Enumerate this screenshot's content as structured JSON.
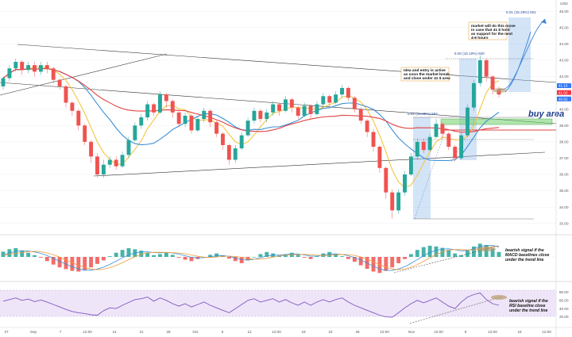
{
  "chart_data": {
    "type": "candlestick",
    "price_axis": {
      "ticks": [
        "46.00",
        "45.00",
        "44.00",
        "43.00",
        "42.00",
        "41.00",
        "40.00",
        "39.00",
        "38.00",
        "37.00",
        "36.00",
        "35.00",
        "34.00",
        "33.00"
      ],
      "ylim": [
        32.6,
        46.4
      ],
      "current_tags": [
        {
          "value": "41.15",
          "color": "#3478f6"
        },
        {
          "value": "41.02",
          "color": "#f23645"
        },
        {
          "value": "40.92",
          "color": "#3478f6"
        }
      ],
      "currency": "USD"
    },
    "time_axis": {
      "labels": [
        "27",
        "Sep",
        "7",
        "12:00",
        "14",
        "21",
        "28",
        "Oct",
        "5",
        "12",
        "12:00",
        "19",
        "22",
        "26",
        "12:00",
        "Nov",
        "12:00",
        "9",
        "12:00",
        "16",
        "12:00"
      ]
    },
    "candles": [
      [
        41.4,
        41.9,
        42.0,
        41.2
      ],
      [
        41.9,
        42.5,
        42.7,
        41.7
      ],
      [
        42.5,
        42.9,
        43.1,
        42.3
      ],
      [
        42.9,
        42.4,
        43.0,
        42.1
      ],
      [
        42.4,
        42.7,
        42.9,
        42.2
      ],
      [
        42.7,
        42.3,
        42.9,
        42.0
      ],
      [
        42.3,
        42.7,
        42.9,
        42.1
      ],
      [
        42.7,
        42.5,
        42.9,
        42.2
      ],
      [
        42.5,
        41.8,
        42.6,
        41.6
      ],
      [
        41.8,
        41.4,
        41.9,
        41.2
      ],
      [
        41.4,
        40.4,
        41.5,
        40.1
      ],
      [
        40.4,
        39.9,
        40.5,
        39.6
      ],
      [
        39.9,
        39.0,
        40.0,
        38.7
      ],
      [
        39.0,
        38.0,
        39.1,
        37.8
      ],
      [
        38.0,
        37.1,
        38.1,
        36.7
      ],
      [
        37.1,
        36.0,
        37.3,
        35.8
      ],
      [
        36.0,
        36.6,
        36.9,
        35.8
      ],
      [
        36.6,
        36.9,
        37.1,
        36.4
      ],
      [
        36.9,
        36.5,
        37.1,
        36.3
      ],
      [
        36.5,
        37.2,
        37.4,
        36.4
      ],
      [
        37.2,
        38.1,
        38.3,
        37.0
      ],
      [
        38.1,
        39.0,
        39.2,
        38.0
      ],
      [
        39.0,
        39.5,
        39.7,
        38.8
      ],
      [
        39.5,
        40.3,
        40.5,
        39.3
      ],
      [
        40.3,
        39.8,
        40.4,
        39.6
      ],
      [
        39.8,
        40.9,
        41.1,
        39.7
      ],
      [
        40.9,
        40.5,
        41.0,
        40.1
      ],
      [
        40.5,
        39.8,
        40.6,
        39.5
      ],
      [
        39.8,
        39.1,
        39.9,
        38.9
      ],
      [
        39.1,
        39.6,
        39.8,
        38.9
      ],
      [
        39.6,
        38.7,
        39.7,
        38.5
      ],
      [
        38.7,
        39.4,
        39.6,
        38.6
      ],
      [
        39.4,
        39.9,
        40.1,
        39.2
      ],
      [
        39.9,
        39.2,
        40.0,
        38.9
      ],
      [
        39.2,
        38.5,
        39.3,
        38.3
      ],
      [
        38.5,
        37.8,
        38.6,
        37.5
      ],
      [
        37.8,
        36.9,
        37.9,
        36.6
      ],
      [
        36.9,
        37.6,
        37.8,
        36.7
      ],
      [
        37.6,
        38.4,
        38.6,
        37.5
      ],
      [
        38.4,
        39.3,
        39.5,
        38.3
      ],
      [
        39.3,
        39.9,
        40.1,
        39.1
      ],
      [
        39.9,
        39.4,
        40.0,
        39.2
      ],
      [
        39.4,
        39.8,
        40.0,
        39.2
      ],
      [
        39.8,
        40.3,
        40.5,
        39.6
      ],
      [
        40.3,
        39.9,
        40.4,
        39.6
      ],
      [
        39.9,
        40.6,
        40.8,
        39.8
      ],
      [
        40.6,
        40.1,
        40.7,
        39.8
      ],
      [
        40.1,
        39.6,
        40.2,
        39.4
      ],
      [
        39.6,
        40.2,
        40.4,
        39.5
      ],
      [
        40.2,
        39.7,
        40.3,
        39.4
      ],
      [
        39.7,
        40.3,
        40.5,
        39.6
      ],
      [
        40.3,
        40.8,
        41.0,
        40.1
      ],
      [
        40.8,
        40.4,
        40.9,
        40.2
      ],
      [
        40.4,
        40.9,
        41.1,
        40.3
      ],
      [
        40.9,
        41.3,
        41.5,
        40.7
      ],
      [
        41.3,
        40.7,
        41.4,
        40.5
      ],
      [
        40.7,
        40.0,
        40.8,
        39.8
      ],
      [
        40.0,
        39.3,
        40.1,
        39.1
      ],
      [
        39.3,
        38.6,
        39.4,
        38.3
      ],
      [
        38.6,
        37.7,
        38.8,
        37.4
      ],
      [
        37.7,
        36.4,
        37.8,
        36.1
      ],
      [
        36.4,
        34.9,
        36.5,
        34.5
      ],
      [
        34.9,
        33.8,
        35.1,
        33.3
      ],
      [
        33.8,
        34.9,
        35.1,
        33.6
      ],
      [
        34.9,
        36.0,
        36.2,
        34.7
      ],
      [
        36.0,
        37.1,
        37.3,
        35.9
      ],
      [
        37.1,
        38.0,
        38.2,
        36.9
      ],
      [
        38.0,
        37.5,
        38.2,
        37.3
      ],
      [
        37.5,
        38.3,
        38.5,
        37.4
      ],
      [
        38.3,
        39.1,
        39.4,
        38.2
      ],
      [
        39.1,
        38.5,
        39.2,
        38.2
      ],
      [
        38.5,
        37.7,
        38.6,
        37.5
      ],
      [
        37.7,
        37.0,
        37.8,
        36.8
      ],
      [
        37.0,
        38.4,
        38.6,
        36.9
      ],
      [
        38.4,
        40.1,
        40.3,
        38.3
      ],
      [
        40.1,
        41.6,
        41.8,
        39.9
      ],
      [
        41.6,
        43.0,
        43.3,
        41.4
      ],
      [
        43.0,
        42.0,
        43.1,
        41.7
      ],
      [
        42.0,
        41.2,
        42.1,
        40.9
      ],
      [
        41.2,
        40.9,
        41.4,
        40.7
      ]
    ],
    "indicators": [
      {
        "name": "",
        "type": "line",
        "color": "#f4c542"
      },
      {
        "name": "",
        "type": "line",
        "color": "#3a8fd6"
      },
      {
        "name": "",
        "type": "line",
        "color": "#e04343"
      }
    ],
    "macd": {
      "hist": [
        0.15,
        0.22,
        0.25,
        0.18,
        0.12,
        0.05,
        -0.02,
        -0.12,
        -0.22,
        -0.3,
        -0.35,
        -0.4,
        -0.42,
        -0.38,
        -0.3,
        -0.2,
        -0.1,
        0.02,
        0.12,
        0.2,
        0.25,
        0.22,
        0.18,
        0.12,
        0.05,
        0.08,
        0.12,
        0.06,
        -0.02,
        -0.08,
        -0.12,
        -0.06,
        0.0,
        0.06,
        0.1,
        0.04,
        -0.05,
        -0.12,
        -0.18,
        -0.1,
        0.0,
        0.08,
        0.14,
        0.1,
        0.04,
        0.08,
        0.12,
        0.06,
        -0.02,
        -0.06,
        0.02,
        0.1,
        0.14,
        0.08,
        0.02,
        -0.06,
        -0.14,
        -0.24,
        -0.34,
        -0.42,
        -0.46,
        -0.4,
        -0.3,
        -0.18,
        -0.06,
        0.08,
        0.2,
        0.28,
        0.32,
        0.3,
        0.26,
        0.2,
        0.1,
        0.05,
        0.18,
        0.3,
        0.38,
        0.34,
        0.24,
        0.14
      ]
    },
    "rsi": {
      "values": [
        58,
        62,
        66,
        60,
        63,
        57,
        61,
        56,
        50,
        44,
        38,
        33,
        30,
        28,
        25,
        24,
        35,
        42,
        40,
        48,
        55,
        62,
        64,
        68,
        58,
        66,
        60,
        52,
        46,
        52,
        44,
        50,
        56,
        48,
        42,
        36,
        30,
        40,
        50,
        60,
        64,
        56,
        60,
        64,
        56,
        62,
        54,
        48,
        56,
        48,
        56,
        62,
        56,
        62,
        66,
        56,
        48,
        42,
        36,
        30,
        24,
        20,
        19,
        30,
        42,
        52,
        60,
        54,
        60,
        66,
        56,
        46,
        40,
        56,
        68,
        74,
        78,
        62,
        52,
        48
      ],
      "ticks": [
        "80.00",
        "60.00",
        "40.00",
        "20.00"
      ]
    },
    "annotations": {
      "measure_up": "6.01 (15.28%) 601",
      "measure_mid": "6.00 (16.19%) 600",
      "measure_small": "5.92 (15.85%) 592",
      "note_top": [
        "market will do this move",
        "in case that 41 $ hold",
        "as support for the next",
        "4-6 hours"
      ],
      "note_entry": [
        "Idea and entry is active",
        "as soon the market break",
        "and close under 41 $ area"
      ],
      "buy_area": "buy area",
      "macd_note": [
        "bearish signal if the",
        "MACD baselines close",
        "under the trend line"
      ],
      "rsi_note": [
        "bearish signal if the",
        "RSI baseline close",
        "under the trend line"
      ]
    }
  }
}
